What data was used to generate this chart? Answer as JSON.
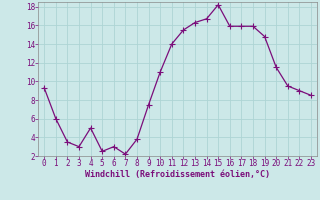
{
  "x": [
    0,
    1,
    2,
    3,
    4,
    5,
    6,
    7,
    8,
    9,
    10,
    11,
    12,
    13,
    14,
    15,
    16,
    17,
    18,
    19,
    20,
    21,
    22,
    23
  ],
  "y": [
    9.3,
    6.0,
    3.5,
    3.0,
    5.0,
    2.5,
    3.0,
    2.2,
    3.8,
    7.5,
    11.0,
    14.0,
    15.5,
    16.3,
    16.7,
    18.2,
    15.9,
    15.9,
    15.9,
    14.8,
    11.5,
    9.5,
    9.0,
    8.5
  ],
  "line_color": "#7b0e7b",
  "marker": "+",
  "marker_size": 4,
  "marker_linewidth": 0.8,
  "linewidth": 0.9,
  "bg_color": "#cce8e8",
  "grid_color": "#aed4d4",
  "xlabel": "Windchill (Refroidissement éolien,°C)",
  "xlabel_color": "#7b0e7b",
  "tick_color": "#7b0e7b",
  "spine_color": "#888888",
  "ylim": [
    2,
    18.5
  ],
  "yticks": [
    2,
    4,
    6,
    8,
    10,
    12,
    14,
    16,
    18
  ],
  "xlim": [
    -0.5,
    23.5
  ],
  "xticks": [
    0,
    1,
    2,
    3,
    4,
    5,
    6,
    7,
    8,
    9,
    10,
    11,
    12,
    13,
    14,
    15,
    16,
    17,
    18,
    19,
    20,
    21,
    22,
    23
  ],
  "tick_fontsize": 5.5,
  "xlabel_fontsize": 6.0,
  "xlabel_fontweight": "bold"
}
